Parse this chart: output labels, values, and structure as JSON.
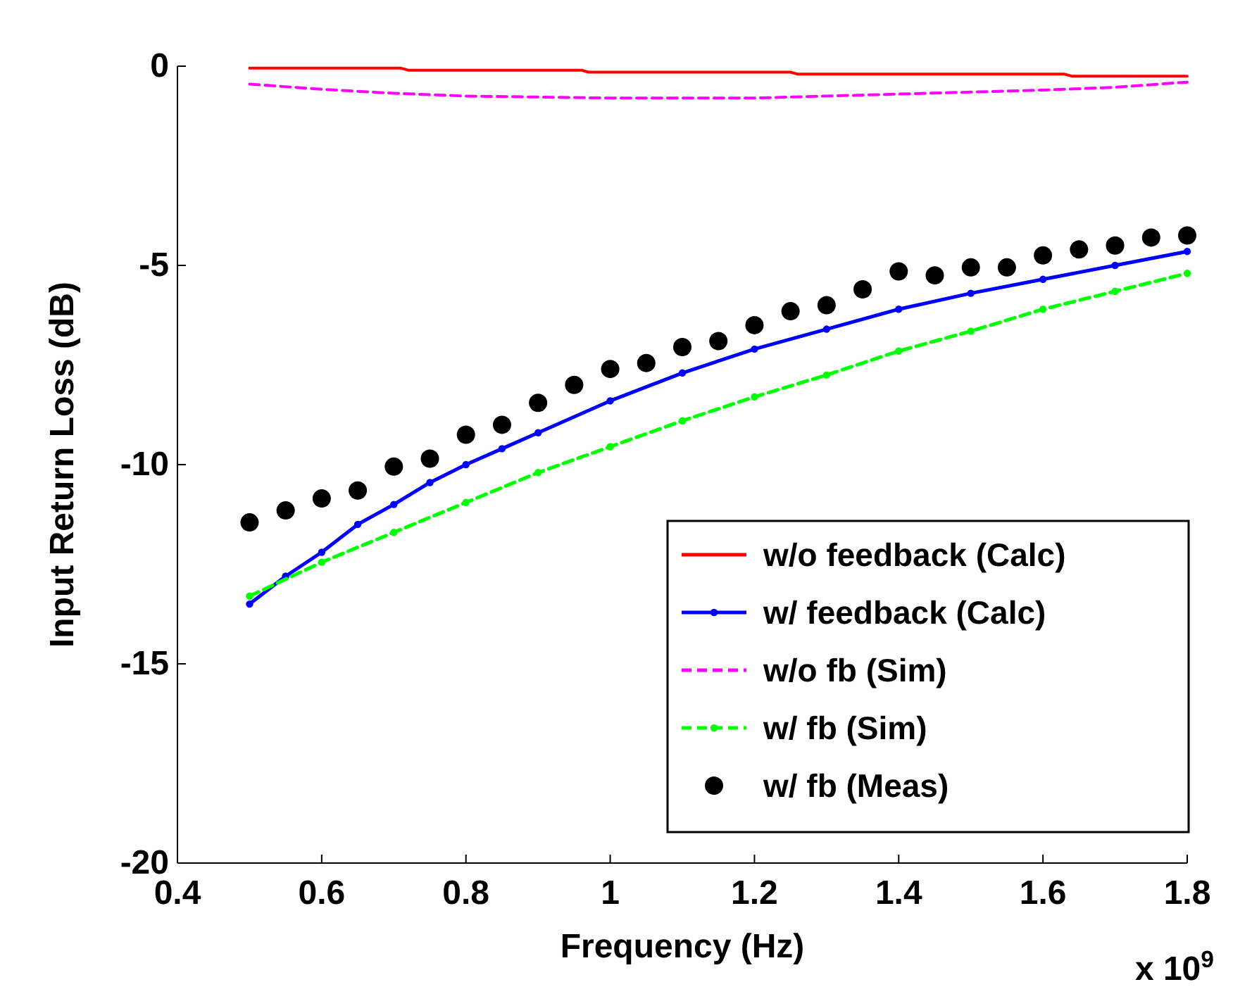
{
  "chart_data": {
    "type": "line",
    "xlabel": "Frequency (Hz)",
    "ylabel": "Input Return Loss (dB)",
    "xlim": [
      0.4,
      1.8
    ],
    "xticks": [
      0.4,
      0.6,
      0.8,
      1,
      1.2,
      1.4,
      1.6,
      1.8
    ],
    "ylim": [
      -20,
      0
    ],
    "yticks": [
      -20,
      -15,
      -10,
      -5,
      0
    ],
    "grid": false,
    "legend": "bottom right",
    "annotations": [
      "x 10$^{9}$"
    ],
    "series": [
      {
        "name": "w/o feedback (Calc)",
        "color": "#ff0000",
        "line_style": "solid",
        "marker": "none",
        "x": [
          0.5,
          0.71,
          0.72,
          0.96,
          0.97,
          1.25,
          1.26,
          1.63,
          1.64,
          1.8
        ],
        "values": [
          -0.05,
          -0.05,
          -0.1,
          -0.1,
          -0.15,
          -0.15,
          -0.2,
          -0.2,
          -0.25,
          -0.25
        ]
      },
      {
        "name": "w/ feedback (Calc)",
        "color": "#0000ff",
        "line_style": "solid",
        "marker": "circle",
        "x": [
          0.5,
          0.55,
          0.6,
          0.65,
          0.7,
          0.75,
          0.8,
          0.85,
          0.9,
          1.0,
          1.1,
          1.2,
          1.3,
          1.4,
          1.5,
          1.6,
          1.7,
          1.8
        ],
        "values": [
          -13.5,
          -12.8,
          -12.2,
          -11.5,
          -11.0,
          -10.45,
          -10.0,
          -9.6,
          -9.2,
          -8.4,
          -7.7,
          -7.1,
          -6.6,
          -6.1,
          -5.7,
          -5.35,
          -5.0,
          -4.65
        ]
      },
      {
        "name": "w/o fb (Sim)",
        "color": "#ff00ff",
        "line_style": "dashed",
        "marker": "none",
        "x": [
          0.5,
          0.6,
          0.7,
          0.8,
          1.0,
          1.2,
          1.4,
          1.6,
          1.7,
          1.8
        ],
        "values": [
          -0.45,
          -0.58,
          -0.68,
          -0.75,
          -0.8,
          -0.8,
          -0.7,
          -0.6,
          -0.53,
          -0.4
        ]
      },
      {
        "name": "w/ fb (Sim)",
        "color": "#00ff00",
        "line_style": "dashed",
        "marker": "circle",
        "x": [
          0.5,
          0.6,
          0.7,
          0.8,
          0.9,
          1.0,
          1.1,
          1.2,
          1.3,
          1.4,
          1.5,
          1.6,
          1.7,
          1.8
        ],
        "values": [
          -13.3,
          -12.45,
          -11.7,
          -10.95,
          -10.2,
          -9.55,
          -8.9,
          -8.3,
          -7.75,
          -7.15,
          -6.65,
          -6.1,
          -5.65,
          -5.2
        ]
      },
      {
        "name": "w/ fb (Meas)",
        "type": "scatter",
        "color": "#000000",
        "marker": "circle",
        "x": [
          0.5,
          0.55,
          0.6,
          0.65,
          0.7,
          0.75,
          0.8,
          0.85,
          0.9,
          0.95,
          1.0,
          1.05,
          1.1,
          1.15,
          1.2,
          1.25,
          1.3,
          1.35,
          1.4,
          1.45,
          1.5,
          1.55,
          1.6,
          1.65,
          1.7,
          1.75,
          1.8
        ],
        "values": [
          -11.45,
          -11.15,
          -10.85,
          -10.65,
          -10.05,
          -9.85,
          -9.25,
          -9.0,
          -8.45,
          -8.0,
          -7.6,
          -7.45,
          -7.05,
          -6.9,
          -6.5,
          -6.15,
          -6.0,
          -5.6,
          -5.15,
          -5.25,
          -5.05,
          -5.05,
          -4.75,
          -4.6,
          -4.5,
          -4.3,
          -4.25
        ]
      }
    ]
  }
}
